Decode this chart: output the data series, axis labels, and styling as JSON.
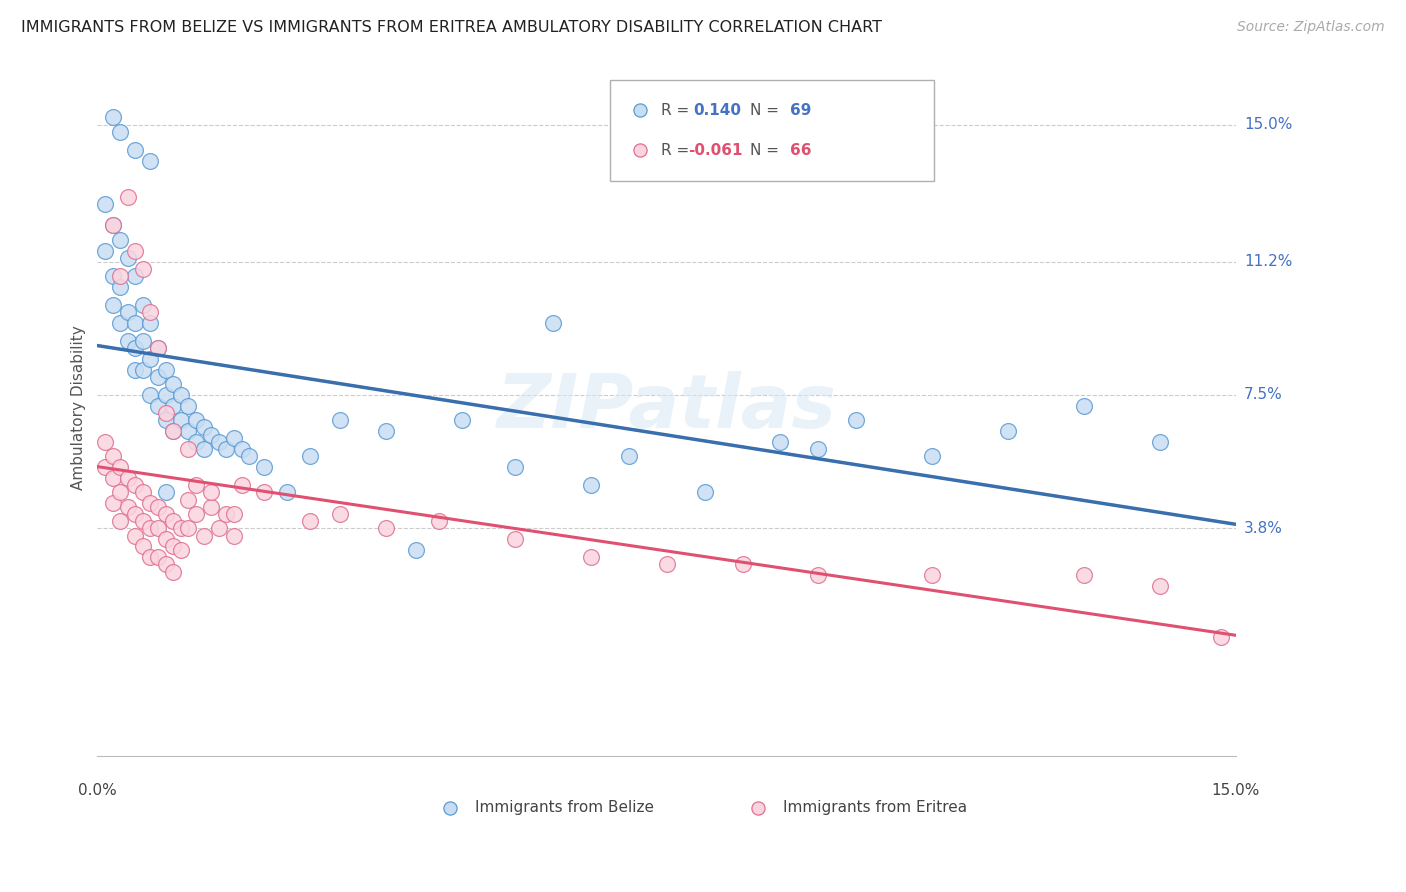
{
  "title": "IMMIGRANTS FROM BELIZE VS IMMIGRANTS FROM ERITREA AMBULATORY DISABILITY CORRELATION CHART",
  "source": "Source: ZipAtlas.com",
  "ylabel": "Ambulatory Disability",
  "ytick_labels": [
    "15.0%",
    "11.2%",
    "7.5%",
    "3.8%"
  ],
  "ytick_values": [
    0.15,
    0.112,
    0.075,
    0.038
  ],
  "xmin": 0.0,
  "xmax": 0.15,
  "ymin": -0.025,
  "ymax": 0.168,
  "color_belize_face": "#c8ddf2",
  "color_belize_edge": "#5b9bd5",
  "color_eritrea_face": "#fad4df",
  "color_eritrea_edge": "#e07090",
  "line_color_belize": "#3a6fad",
  "line_color_eritrea": "#e05070",
  "line_color_belize_dashed": "#b0c8e0",
  "belize_x": [
    0.001,
    0.001,
    0.002,
    0.002,
    0.002,
    0.003,
    0.003,
    0.003,
    0.004,
    0.004,
    0.004,
    0.005,
    0.005,
    0.005,
    0.005,
    0.006,
    0.006,
    0.006,
    0.007,
    0.007,
    0.007,
    0.008,
    0.008,
    0.008,
    0.009,
    0.009,
    0.009,
    0.01,
    0.01,
    0.01,
    0.011,
    0.011,
    0.012,
    0.012,
    0.013,
    0.013,
    0.014,
    0.014,
    0.015,
    0.016,
    0.017,
    0.018,
    0.019,
    0.02,
    0.002,
    0.003,
    0.005,
    0.007,
    0.009,
    0.022,
    0.025,
    0.028,
    0.032,
    0.038,
    0.042,
    0.048,
    0.055,
    0.06,
    0.065,
    0.07,
    0.08,
    0.09,
    0.095,
    0.1,
    0.11,
    0.12,
    0.13,
    0.14
  ],
  "belize_y": [
    0.128,
    0.115,
    0.122,
    0.108,
    0.1,
    0.118,
    0.105,
    0.095,
    0.113,
    0.098,
    0.09,
    0.108,
    0.095,
    0.088,
    0.082,
    0.1,
    0.09,
    0.082,
    0.095,
    0.085,
    0.075,
    0.088,
    0.08,
    0.072,
    0.082,
    0.075,
    0.068,
    0.078,
    0.072,
    0.065,
    0.075,
    0.068,
    0.072,
    0.065,
    0.068,
    0.062,
    0.066,
    0.06,
    0.064,
    0.062,
    0.06,
    0.063,
    0.06,
    0.058,
    0.152,
    0.148,
    0.143,
    0.14,
    0.048,
    0.055,
    0.048,
    0.058,
    0.068,
    0.065,
    0.032,
    0.068,
    0.055,
    0.095,
    0.05,
    0.058,
    0.048,
    0.062,
    0.06,
    0.068,
    0.058,
    0.065,
    0.072,
    0.062
  ],
  "eritrea_x": [
    0.001,
    0.001,
    0.002,
    0.002,
    0.002,
    0.003,
    0.003,
    0.003,
    0.004,
    0.004,
    0.005,
    0.005,
    0.005,
    0.006,
    0.006,
    0.006,
    0.007,
    0.007,
    0.007,
    0.008,
    0.008,
    0.008,
    0.009,
    0.009,
    0.009,
    0.01,
    0.01,
    0.01,
    0.011,
    0.011,
    0.012,
    0.012,
    0.013,
    0.013,
    0.014,
    0.015,
    0.016,
    0.017,
    0.018,
    0.019,
    0.002,
    0.003,
    0.004,
    0.005,
    0.006,
    0.007,
    0.008,
    0.009,
    0.01,
    0.012,
    0.015,
    0.018,
    0.022,
    0.028,
    0.032,
    0.038,
    0.045,
    0.055,
    0.065,
    0.075,
    0.085,
    0.095,
    0.11,
    0.13,
    0.14,
    0.148
  ],
  "eritrea_y": [
    0.062,
    0.055,
    0.058,
    0.052,
    0.045,
    0.055,
    0.048,
    0.04,
    0.052,
    0.044,
    0.05,
    0.042,
    0.036,
    0.048,
    0.04,
    0.033,
    0.045,
    0.038,
    0.03,
    0.044,
    0.038,
    0.03,
    0.042,
    0.035,
    0.028,
    0.04,
    0.033,
    0.026,
    0.038,
    0.032,
    0.046,
    0.038,
    0.05,
    0.042,
    0.036,
    0.044,
    0.038,
    0.042,
    0.036,
    0.05,
    0.122,
    0.108,
    0.13,
    0.115,
    0.11,
    0.098,
    0.088,
    0.07,
    0.065,
    0.06,
    0.048,
    0.042,
    0.048,
    0.04,
    0.042,
    0.038,
    0.04,
    0.035,
    0.03,
    0.028,
    0.028,
    0.025,
    0.025,
    0.025,
    0.022,
    0.008
  ]
}
